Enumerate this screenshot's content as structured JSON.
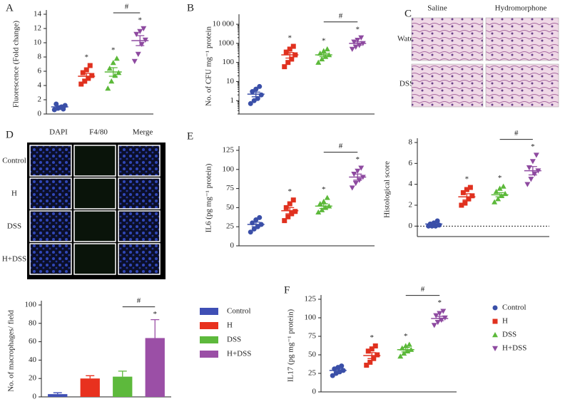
{
  "chart_data": [
    {
      "type": "dot",
      "panel": "A",
      "ylabel": "Fluorescence (Fold change)",
      "ylim": [
        0,
        14
      ],
      "yticks": [
        0,
        2,
        4,
        6,
        8,
        10,
        12,
        14
      ],
      "bracket_label": "#",
      "series": [
        {
          "color": "#3a4fa8",
          "marker": "circle",
          "values": [
            0.6,
            0.8,
            1.0,
            1.2,
            1.4,
            0.9,
            0.7
          ],
          "mean": 1.0,
          "sem": 0.15
        },
        {
          "color": "#e0311f",
          "marker": "square",
          "values": [
            4.2,
            4.6,
            5.0,
            5.4,
            5.8,
            6.2,
            6.8
          ],
          "mean": 5.3,
          "sem": 0.4,
          "label": "*"
        },
        {
          "color": "#5cb93a",
          "marker": "triangle",
          "values": [
            3.6,
            4.6,
            5.4,
            5.8,
            6.4,
            7.2,
            7.8
          ],
          "mean": 5.9,
          "sem": 0.6,
          "label": "*"
        },
        {
          "color": "#8e4aa0",
          "marker": "triangle-down",
          "values": [
            7.4,
            8.4,
            9.8,
            10.4,
            11.2,
            11.6,
            12.0
          ],
          "mean": 10.3,
          "sem": 0.7,
          "label": "*"
        }
      ]
    },
    {
      "type": "dot",
      "panel": "B",
      "ylabel": "No. of CFU mg⁻¹ protein",
      "log": true,
      "ylim": [
        0.2,
        20000
      ],
      "yticks": [
        1,
        10,
        100,
        1000,
        {
          "value": 10000,
          "label": "10 000"
        }
      ],
      "bracket_label": "#",
      "series": [
        {
          "color": "#3a4fa8",
          "marker": "circle",
          "values": [
            0.7,
            1.0,
            1.3,
            2,
            3,
            4,
            5.5
          ],
          "mean": 2.2,
          "sem": 0.6
        },
        {
          "color": "#e0311f",
          "marker": "square",
          "values": [
            60,
            100,
            150,
            250,
            350,
            500,
            700
          ],
          "mean": 250,
          "sem": 80,
          "label": "*"
        },
        {
          "color": "#5cb93a",
          "marker": "triangle",
          "values": [
            100,
            150,
            200,
            250,
            300,
            400,
            500
          ],
          "mean": 250,
          "sem": 50,
          "label": "*"
        },
        {
          "color": "#8e4aa0",
          "marker": "triangle-down",
          "values": [
            500,
            650,
            800,
            1000,
            1200,
            1500,
            2000
          ],
          "mean": 1000,
          "sem": 200,
          "label": "*"
        }
      ]
    },
    {
      "type": "dot",
      "panel": "E",
      "ylabel": "IL6 (pg mg⁻¹ protein)",
      "ylim": [
        0,
        125
      ],
      "yticks": [
        0,
        25,
        50,
        75,
        100,
        125
      ],
      "bracket_label": "#",
      "series": [
        {
          "color": "#3a4fa8",
          "marker": "circle",
          "values": [
            18,
            22,
            25,
            28,
            30,
            34,
            37
          ],
          "mean": 28,
          "sem": 3
        },
        {
          "color": "#e0311f",
          "marker": "square",
          "values": [
            33,
            38,
            42,
            45,
            50,
            55,
            60
          ],
          "mean": 46,
          "sem": 4,
          "label": "*"
        },
        {
          "color": "#5cb93a",
          "marker": "triangle",
          "values": [
            44,
            47,
            50,
            52,
            55,
            58,
            63
          ],
          "mean": 52,
          "sem": 3,
          "label": "*"
        },
        {
          "color": "#8e4aa0",
          "marker": "triangle-down",
          "values": [
            76,
            82,
            86,
            90,
            94,
            98,
            102
          ],
          "mean": 90,
          "sem": 4,
          "label": "*"
        }
      ]
    },
    {
      "type": "dot",
      "ylabel": "Histological score",
      "ylim": [
        -1,
        8
      ],
      "yticks": [
        0,
        2,
        4,
        6,
        8
      ],
      "zero_line": true,
      "bracket_label": "#",
      "series": [
        {
          "color": "#3a4fa8",
          "marker": "circle",
          "values": [
            0,
            0,
            0,
            0.1,
            0.2,
            0.3,
            0.5
          ],
          "mean": 0.2,
          "sem": 0.1
        },
        {
          "color": "#e0311f",
          "marker": "square",
          "values": [
            2,
            2.2,
            2.6,
            2.9,
            3.2,
            3.5,
            3.7
          ],
          "mean": 2.8,
          "sem": 0.3,
          "label": "*"
        },
        {
          "color": "#5cb93a",
          "marker": "triangle",
          "values": [
            2.3,
            2.6,
            2.9,
            3.1,
            3.3,
            3.6,
            3.8
          ],
          "mean": 3.0,
          "sem": 0.2,
          "label": "*"
        },
        {
          "color": "#8e4aa0",
          "marker": "triangle-down",
          "values": [
            4,
            4.5,
            5,
            5.3,
            5.6,
            6.2,
            6.8
          ],
          "mean": 5.3,
          "sem": 0.4,
          "label": "*"
        }
      ]
    },
    {
      "type": "dot",
      "panel": "F",
      "ylabel": "IL17 (pg mg⁻¹ protein)",
      "ylim": [
        0,
        125
      ],
      "yticks": [
        0,
        25,
        50,
        75,
        100,
        125
      ],
      "bracket_label": "#",
      "series": [
        {
          "name": "Control",
          "color": "#3a4fa8",
          "marker": "circle",
          "values": [
            22,
            25,
            27,
            29,
            31,
            33,
            35
          ],
          "mean": 29,
          "sem": 2
        },
        {
          "name": "H",
          "color": "#e0311f",
          "marker": "square",
          "values": [
            36,
            40,
            45,
            50,
            55,
            58,
            62
          ],
          "mean": 49,
          "sem": 4,
          "label": "*"
        },
        {
          "name": "DSS",
          "color": "#5cb93a",
          "marker": "triangle",
          "values": [
            48,
            52,
            55,
            57,
            59,
            62,
            64
          ],
          "mean": 57,
          "sem": 3,
          "label": "*"
        },
        {
          "name": "H+DSS",
          "color": "#8e4aa0",
          "marker": "triangle-down",
          "values": [
            90,
            94,
            97,
            100,
            103,
            106,
            109
          ],
          "mean": 99,
          "sem": 3,
          "label": "*"
        }
      ]
    },
    {
      "type": "bar",
      "ylabel": "No. of macrophages/ field",
      "ylim": [
        0,
        100
      ],
      "yticks": [
        0,
        20,
        40,
        60,
        80,
        100
      ],
      "bracket_label": "#",
      "series": [
        {
          "name": "Control",
          "color": "#3f4fb5",
          "values": [
            3
          ],
          "errors": [
            1.5
          ]
        },
        {
          "name": "H",
          "color": "#e8311e",
          "values": [
            20
          ],
          "errors": [
            3
          ]
        },
        {
          "name": "DSS",
          "color": "#5db93c",
          "values": [
            22
          ],
          "errors": [
            6
          ]
        },
        {
          "name": "H+DSS",
          "color": "#9b4fa6",
          "values": [
            64
          ],
          "errors": [
            20
          ],
          "label": "*"
        }
      ]
    }
  ],
  "images": [
    {
      "panel": "C",
      "columns": [
        "Saline",
        "Hydromorphone"
      ],
      "rows": [
        "Water",
        "DSS"
      ]
    },
    {
      "panel": "D",
      "columns": [
        "DAPI",
        "F4/80",
        "Merge"
      ],
      "rows": [
        "Control",
        "H",
        "DSS",
        "H+DSS"
      ]
    }
  ]
}
